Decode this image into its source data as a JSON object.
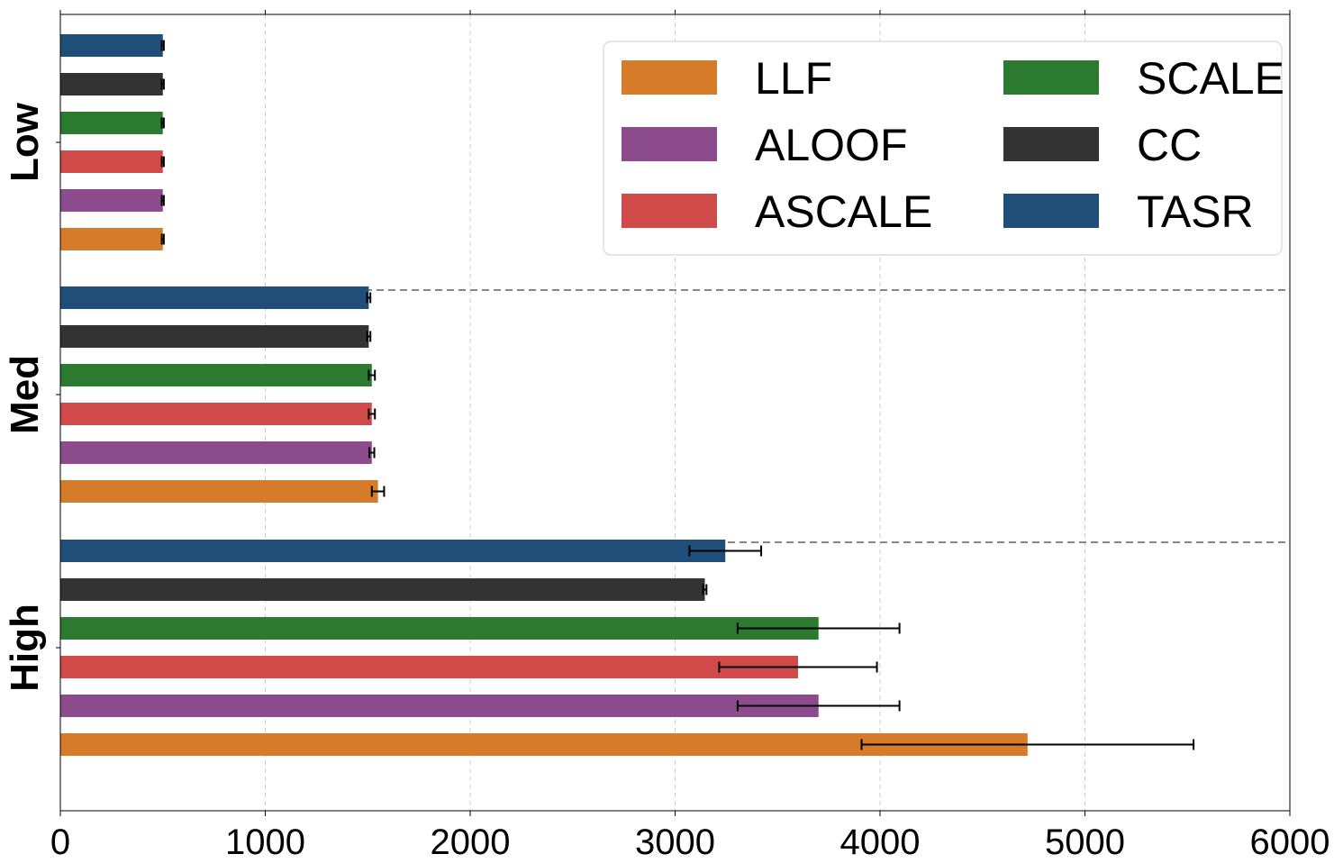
{
  "chart_data": {
    "type": "bar",
    "orientation": "horizontal",
    "categories": [
      "Low",
      "Med",
      "High"
    ],
    "xlim": [
      0,
      6000
    ],
    "xticks": [
      0,
      1000,
      2000,
      3000,
      4000,
      5000,
      6000
    ],
    "grid": "x-dashed",
    "legend_position": "top-right",
    "legend_columns": 2,
    "series": [
      {
        "name": "LLF",
        "color": "#D67B2A",
        "values": [
          500,
          1550,
          4720
        ],
        "errors": [
          5,
          30,
          810
        ]
      },
      {
        "name": "ALOOF",
        "color": "#8B4B8D",
        "values": [
          500,
          1520,
          3700
        ],
        "errors": [
          5,
          12,
          395
        ]
      },
      {
        "name": "ASCALE",
        "color": "#D14A4A",
        "values": [
          500,
          1520,
          3600
        ],
        "errors": [
          5,
          15,
          385
        ]
      },
      {
        "name": "SCALE",
        "color": "#2B7A30",
        "values": [
          500,
          1520,
          3700
        ],
        "errors": [
          5,
          15,
          395
        ]
      },
      {
        "name": "CC",
        "color": "#333333",
        "values": [
          500,
          1505,
          3145
        ],
        "errors": [
          5,
          8,
          8
        ]
      },
      {
        "name": "TASR",
        "color": "#1F4E79",
        "values": [
          500,
          1505,
          3245
        ],
        "errors": [
          5,
          8,
          175
        ]
      }
    ]
  }
}
